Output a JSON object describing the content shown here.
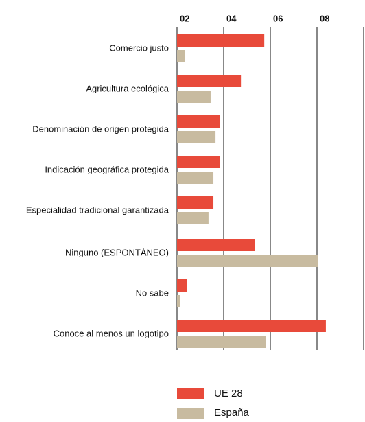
{
  "chart_data": {
    "type": "hbar",
    "categories": [
      "Comercio justo",
      "Agricultura ecológica",
      "Denominación de origen protegida",
      "Indicación geográfica protegida",
      "Especialidad tradicional garantizada",
      "Ninguno (ESPONTÁNEO)",
      "No sabe",
      "Conoce al menos un logotipo"
    ],
    "series": [
      {
        "name": "UE 28",
        "color": "#e84a3a",
        "values": [
          57.4,
          47.4,
          38.5,
          38.5,
          35.6,
          53.5,
          24.4,
          83.8
        ]
      },
      {
        "name": "España",
        "color": "#c8bba0",
        "values": [
          23.5,
          34.4,
          36.5,
          35.6,
          33.5,
          80.3,
          21.2,
          58.2
        ]
      }
    ],
    "xlim": [
      20,
      100
    ],
    "xticks": [
      {
        "value": 20,
        "label": "02"
      },
      {
        "value": 40,
        "label": "04"
      },
      {
        "value": 60,
        "label": "06"
      },
      {
        "value": 80,
        "label": "08"
      }
    ],
    "grid": true
  }
}
